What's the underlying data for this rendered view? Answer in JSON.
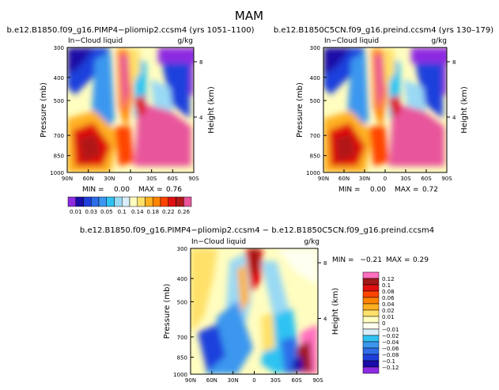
{
  "figure_title": "MAM",
  "chart_data": [
    {
      "type": "heatmap",
      "title": "b.e12.B1850.f09_g16.PIMP4−pliomip2.ccsm4 (yrs 1051–1100)",
      "field_label": "In−Cloud liquid",
      "units": "g/kg",
      "ylabel": "Pressure (mb)",
      "ylabel_right": "Height (km)",
      "x_ticks": [
        "90N",
        "60N",
        "30N",
        "0",
        "30S",
        "60S",
        "90S"
      ],
      "y_ticks": [
        "300",
        "400",
        "500",
        "700",
        "850",
        "1000"
      ],
      "right_ticks": [
        "8",
        "4"
      ],
      "min_label": "MIN =",
      "min_value": "0.00",
      "max_label": "MAX =",
      "max_value": "0.76"
    },
    {
      "type": "heatmap",
      "title": "b.e12.B1850C5CN.f09_g16.preind.ccsm4 (yrs 130–179)",
      "field_label": "In−Cloud liquid",
      "units": "g/kg",
      "ylabel": "Pressure (mb)",
      "ylabel_right": "Height (km)",
      "x_ticks": [
        "90N",
        "60N",
        "30N",
        "0",
        "30S",
        "60S",
        "90S"
      ],
      "y_ticks": [
        "300",
        "400",
        "500",
        "700",
        "850",
        "1000"
      ],
      "right_ticks": [
        "8",
        "4"
      ],
      "min_label": "MIN =",
      "min_value": "0.00",
      "max_label": "MAX =",
      "max_value": "0.72"
    },
    {
      "type": "heatmap",
      "title": "b.e12.B1850.f09_g16.PIMP4−pliomip2.ccsm4 − b.e12.B1850C5CN.f09_g16.preind.ccsm4",
      "field_label": "In−Cloud liquid",
      "units": "g/kg",
      "ylabel": "Pressure (mb)",
      "ylabel_right": "Height (km)",
      "x_ticks": [
        "90N",
        "60N",
        "30N",
        "0",
        "30S",
        "60S",
        "90S"
      ],
      "y_ticks": [
        "300",
        "400",
        "500",
        "700",
        "850",
        "1000"
      ],
      "right_ticks": [
        "8",
        "4"
      ],
      "min_label": "MIN =",
      "min_value": "−0.21",
      "max_label": "MAX =",
      "max_value": "0.29"
    }
  ],
  "colorbar_top": {
    "labels": [
      "0.01",
      "0.03",
      "0.05",
      "0.1",
      "0.14",
      "0.18",
      "0.22",
      "0.26"
    ],
    "colors": [
      "#8d2be2",
      "#1a0ca8",
      "#1f3fdc",
      "#2f6de8",
      "#3b97ef",
      "#2fc3f2",
      "#9ad9f4",
      "#d9eefa",
      "#fffdc0",
      "#ffe16a",
      "#ffb020",
      "#ff8400",
      "#ff4400",
      "#e01010",
      "#b01818",
      "#e8559c"
    ]
  },
  "colorbar_diff": {
    "labels": [
      "0.12",
      "0.1",
      "0.08",
      "0.06",
      "0.04",
      "0.02",
      "0.01",
      "0",
      "−0.01",
      "−0.02",
      "−0.04",
      "−0.06",
      "−0.08",
      "−0.1",
      "−0.12"
    ],
    "colors": [
      "#ff6fc0",
      "#a01818",
      "#e01010",
      "#ff4400",
      "#ff8400",
      "#ffb020",
      "#ffe16a",
      "#fffdc0",
      "#fffff0",
      "#d9eefa",
      "#2fc3f2",
      "#3b97ef",
      "#2f6de8",
      "#1f3fdc",
      "#1a0ca8",
      "#8d2be2"
    ]
  }
}
